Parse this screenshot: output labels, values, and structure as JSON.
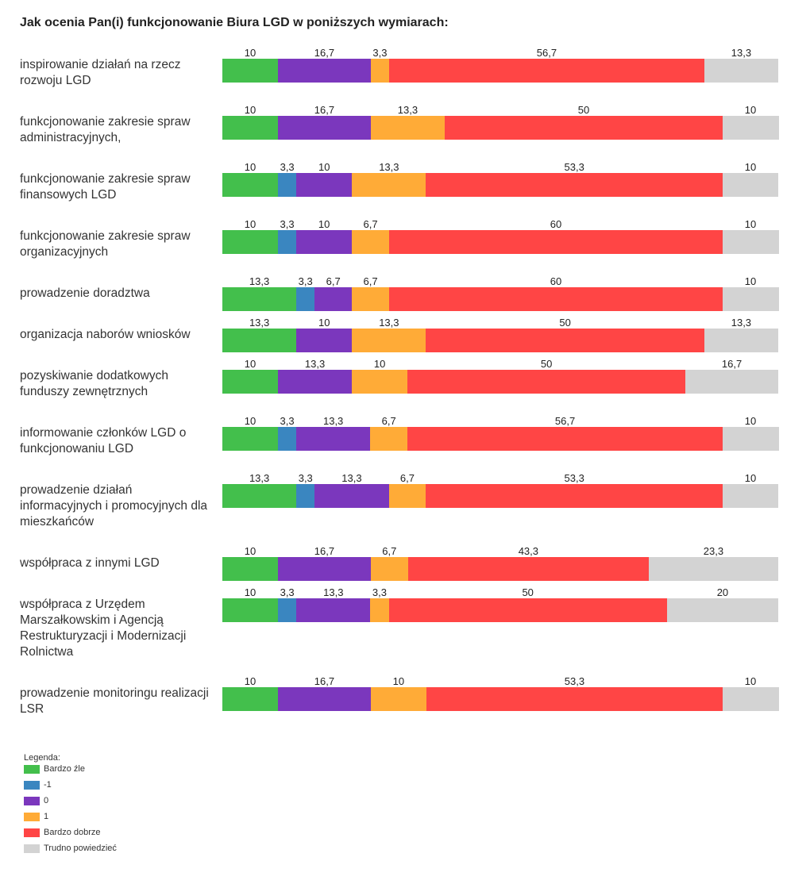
{
  "chart_data": {
    "type": "bar",
    "orientation": "horizontal-stacked-100",
    "title": "Jak ocenia Pan(i) funkcjonowanie Biura LGD w poniższych wymiarach:",
    "legend_title": "Legenda:",
    "legend_placement": "bottom-left",
    "series": [
      {
        "name": "Bardzo źle",
        "color": "#43bf4c"
      },
      {
        "name": "-1",
        "color": "#3a86c0"
      },
      {
        "name": "0",
        "color": "#7b37bd"
      },
      {
        "name": "1",
        "color": "#ffab37"
      },
      {
        "name": "Bardzo dobrze",
        "color": "#ff4545"
      },
      {
        "name": "Trudno powiedzieć",
        "color": "#d3d3d3"
      }
    ],
    "categories": [
      {
        "label": "inspirowanie działań na rzecz rozwoju LGD",
        "values": [
          10,
          0,
          16.7,
          3.3,
          56.7,
          13.3
        ],
        "labels": [
          "10",
          "",
          "16,7",
          "3,3",
          "56,7",
          "13,3"
        ]
      },
      {
        "label": "funkcjonowanie zakresie spraw administracyjnych,",
        "values": [
          10,
          0,
          16.7,
          13.3,
          50,
          10
        ],
        "labels": [
          "10",
          "",
          "16,7",
          "13,3",
          "50",
          "10"
        ]
      },
      {
        "label": "funkcjonowanie zakresie spraw finansowych LGD",
        "values": [
          10,
          3.3,
          10,
          13.3,
          53.3,
          10
        ],
        "labels": [
          "10",
          "3,3",
          "10",
          "13,3",
          "53,3",
          "10"
        ]
      },
      {
        "label": "funkcjonowanie zakresie spraw organizacyjnych",
        "values": [
          10,
          3.3,
          10,
          6.7,
          60,
          10
        ],
        "labels": [
          "10",
          "3,3",
          "10",
          "6,7",
          "60",
          "10"
        ]
      },
      {
        "label": "prowadzenie doradztwa",
        "values": [
          13.3,
          3.3,
          6.7,
          6.7,
          60,
          10
        ],
        "labels": [
          "13,3",
          "3,3",
          "6,7",
          "6,7",
          "60",
          "10"
        ]
      },
      {
        "label": "organizacja naborów wniosków",
        "values": [
          13.3,
          0,
          10,
          13.3,
          50,
          13.3
        ],
        "labels": [
          "13,3",
          "",
          "10",
          "13,3",
          "50",
          "13,3"
        ]
      },
      {
        "label": "pozyskiwanie dodatkowych funduszy zewnętrznych",
        "values": [
          10,
          0,
          13.3,
          10,
          50,
          16.7
        ],
        "labels": [
          "10",
          "",
          "13,3",
          "10",
          "50",
          "16,7"
        ]
      },
      {
        "label": "informowanie członków LGD o funkcjonowaniu LGD",
        "values": [
          10,
          3.3,
          13.3,
          6.7,
          56.7,
          10
        ],
        "labels": [
          "10",
          "3,3",
          "13,3",
          "6,7",
          "56,7",
          "10"
        ]
      },
      {
        "label": "prowadzenie działań informacyjnych i promocyjnych dla mieszkańców",
        "values": [
          13.3,
          3.3,
          13.3,
          6.7,
          53.3,
          10
        ],
        "labels": [
          "13,3",
          "3,3",
          "13,3",
          "6,7",
          "53,3",
          "10"
        ]
      },
      {
        "label": "współpraca z innymi LGD",
        "values": [
          10,
          0,
          16.7,
          6.7,
          43.3,
          23.3
        ],
        "labels": [
          "10",
          "",
          "16,7",
          "6,7",
          "43,3",
          "23,3"
        ]
      },
      {
        "label": "współpraca z Urzędem Marszałkowskim i Agencją Restrukturyzacji i Modernizacji Rolnictwa",
        "values": [
          10,
          3.3,
          13.3,
          3.3,
          50,
          20
        ],
        "labels": [
          "10",
          "3,3",
          "13,3",
          "3,3",
          "50",
          "20"
        ]
      },
      {
        "label": "prowadzenie monitoringu realizacji LSR",
        "values": [
          10,
          0,
          16.7,
          10,
          53.3,
          10
        ],
        "labels": [
          "10",
          "",
          "16,7",
          "10",
          "53,3",
          "10"
        ]
      }
    ]
  }
}
